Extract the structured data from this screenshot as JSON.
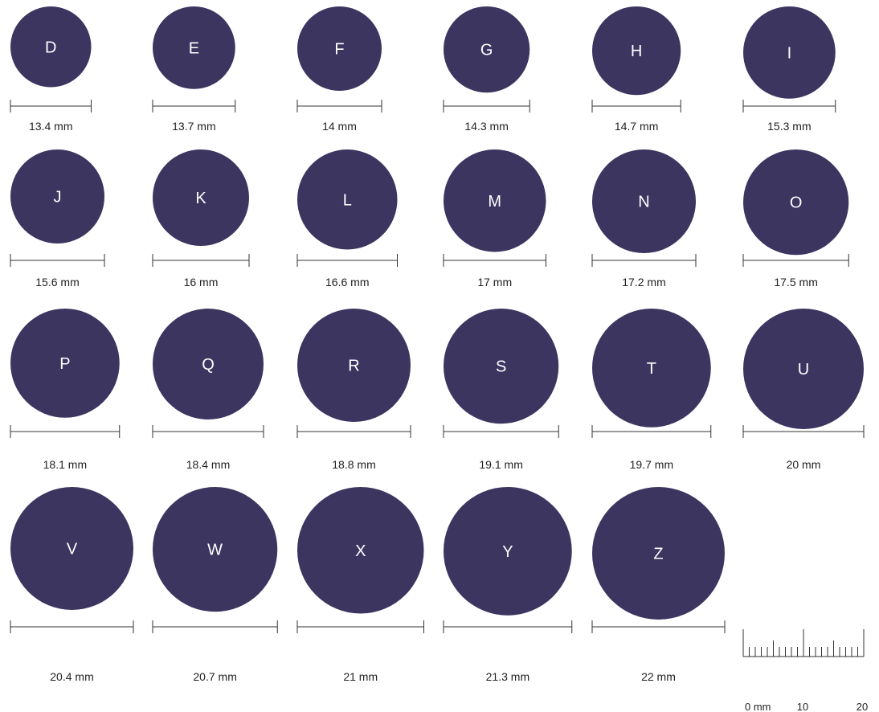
{
  "colors": {
    "circle_fill": "#3c3560",
    "circle_text": "#ffffff",
    "line": "#333333",
    "label_text": "#222222"
  },
  "rings": [
    {
      "letter": "D",
      "size_label": "13.4 mm",
      "diameter_mm": 13.4
    },
    {
      "letter": "E",
      "size_label": "13.7 mm",
      "diameter_mm": 13.7
    },
    {
      "letter": "F",
      "size_label": "14 mm",
      "diameter_mm": 14
    },
    {
      "letter": "G",
      "size_label": "14.3 mm",
      "diameter_mm": 14.3
    },
    {
      "letter": "H",
      "size_label": "14.7 mm",
      "diameter_mm": 14.7
    },
    {
      "letter": "I",
      "size_label": "15.3 mm",
      "diameter_mm": 15.3
    },
    {
      "letter": "J",
      "size_label": "15.6 mm",
      "diameter_mm": 15.6
    },
    {
      "letter": "K",
      "size_label": "16 mm",
      "diameter_mm": 16
    },
    {
      "letter": "L",
      "size_label": "16.6 mm",
      "diameter_mm": 16.6
    },
    {
      "letter": "M",
      "size_label": "17 mm",
      "diameter_mm": 17
    },
    {
      "letter": "N",
      "size_label": "17.2 mm",
      "diameter_mm": 17.2
    },
    {
      "letter": "O",
      "size_label": "17.5 mm",
      "diameter_mm": 17.5
    },
    {
      "letter": "P",
      "size_label": "18.1 mm",
      "diameter_mm": 18.1
    },
    {
      "letter": "Q",
      "size_label": "18.4 mm",
      "diameter_mm": 18.4
    },
    {
      "letter": "R",
      "size_label": "18.8 mm",
      "diameter_mm": 18.8
    },
    {
      "letter": "S",
      "size_label": "19.1 mm",
      "diameter_mm": 19.1
    },
    {
      "letter": "T",
      "size_label": "19.7 mm",
      "diameter_mm": 19.7
    },
    {
      "letter": "U",
      "size_label": "20 mm",
      "diameter_mm": 20
    },
    {
      "letter": "V",
      "size_label": "20.4 mm",
      "diameter_mm": 20.4
    },
    {
      "letter": "W",
      "size_label": "20.7 mm",
      "diameter_mm": 20.7
    },
    {
      "letter": "X",
      "size_label": "21 mm",
      "diameter_mm": 21
    },
    {
      "letter": "Y",
      "size_label": "21.3 mm",
      "diameter_mm": 21.3
    },
    {
      "letter": "Z",
      "size_label": "22 mm",
      "diameter_mm": 22
    }
  ],
  "ruler": {
    "labels": [
      "0 mm",
      "10",
      "20"
    ],
    "range_mm": [
      0,
      20
    ]
  }
}
